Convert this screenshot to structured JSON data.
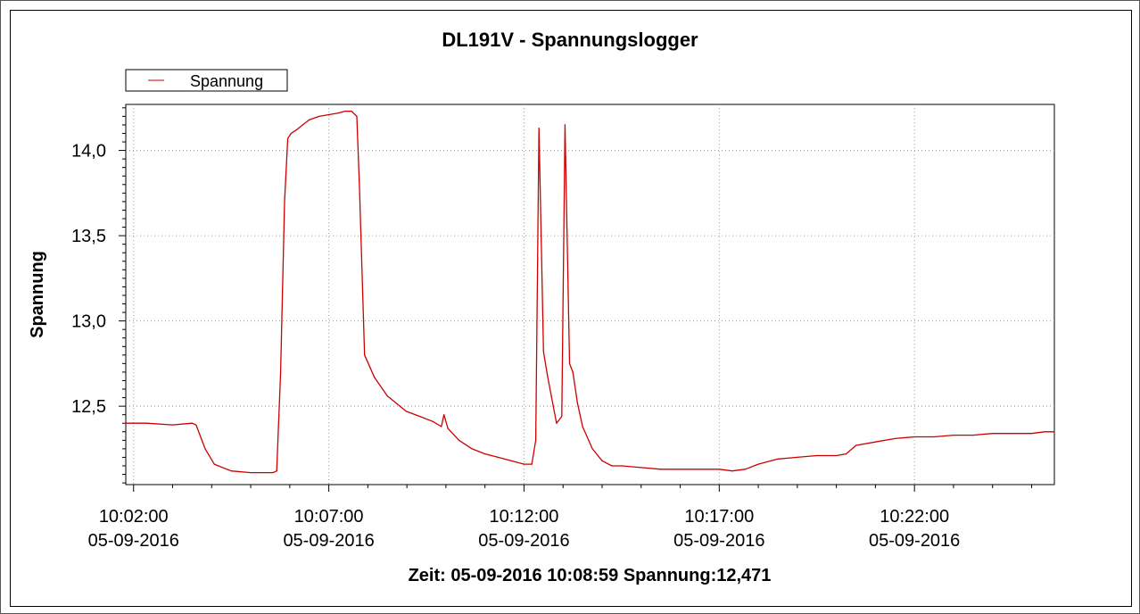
{
  "chart_data": {
    "type": "line",
    "title": "DL191V - Spannungslogger",
    "xlabel": "",
    "ylabel": "Spannung",
    "xlim": [
      "10:01:48",
      "10:25:35"
    ],
    "ylim": [
      12.04,
      14.27
    ],
    "grid": true,
    "legend_position": "top-left",
    "x_ticks": [
      {
        "time": "10:02:00",
        "date": "05-09-2016"
      },
      {
        "time": "10:07:00",
        "date": "05-09-2016"
      },
      {
        "time": "10:12:00",
        "date": "05-09-2016"
      },
      {
        "time": "10:17:00",
        "date": "05-09-2016"
      },
      {
        "time": "10:22:00",
        "date": "05-09-2016"
      }
    ],
    "y_ticks": [
      "12,5",
      "13,0",
      "13,5",
      "14,0"
    ],
    "y_tick_values": [
      12.5,
      13.0,
      13.5,
      14.0
    ],
    "series": [
      {
        "name": "Spannung",
        "color": "#cc0000",
        "x": [
          "10:01:48",
          "10:02:20",
          "10:03:00",
          "10:03:30",
          "10:03:36",
          "10:03:50",
          "10:04:04",
          "10:04:30",
          "10:05:00",
          "10:05:20",
          "10:05:34",
          "10:05:40",
          "10:05:46",
          "10:05:52",
          "10:05:57",
          "10:06:02",
          "10:06:10",
          "10:06:20",
          "10:06:30",
          "10:06:45",
          "10:07:00",
          "10:07:15",
          "10:07:25",
          "10:07:35",
          "10:07:43",
          "10:07:47",
          "10:07:55",
          "10:08:10",
          "10:08:30",
          "10:08:59",
          "10:09:20",
          "10:09:40",
          "10:09:53",
          "10:09:57",
          "10:10:03",
          "10:10:20",
          "10:10:40",
          "10:11:00",
          "10:11:20",
          "10:11:40",
          "10:12:00",
          "10:12:12",
          "10:12:18",
          "10:12:23",
          "10:12:30",
          "10:12:36",
          "10:12:50",
          "10:12:58",
          "10:13:03",
          "10:13:10",
          "10:13:15",
          "10:13:22",
          "10:13:30",
          "10:13:45",
          "10:14:00",
          "10:14:15",
          "10:14:30",
          "10:15:00",
          "10:15:30",
          "10:16:00",
          "10:16:30",
          "10:17:00",
          "10:17:20",
          "10:17:40",
          "10:18:00",
          "10:18:30",
          "10:19:00",
          "10:19:30",
          "10:20:00",
          "10:20:15",
          "10:20:30",
          "10:21:00",
          "10:21:30",
          "10:22:00",
          "10:22:30",
          "10:23:00",
          "10:23:30",
          "10:24:00",
          "10:24:30",
          "10:25:00",
          "10:25:20",
          "10:25:35"
        ],
        "y": [
          12.4,
          12.4,
          12.39,
          12.4,
          12.39,
          12.25,
          12.16,
          12.12,
          12.11,
          12.11,
          12.11,
          12.12,
          12.7,
          13.7,
          14.07,
          14.1,
          14.12,
          14.15,
          14.18,
          14.2,
          14.21,
          14.22,
          14.23,
          14.23,
          14.2,
          13.8,
          12.8,
          12.67,
          12.56,
          12.47,
          12.44,
          12.41,
          12.38,
          12.45,
          12.37,
          12.3,
          12.25,
          12.22,
          12.2,
          12.18,
          12.16,
          12.16,
          12.3,
          14.13,
          12.82,
          12.68,
          12.4,
          12.44,
          14.15,
          12.75,
          12.7,
          12.52,
          12.38,
          12.25,
          12.18,
          12.15,
          12.15,
          12.14,
          12.13,
          12.13,
          12.13,
          12.13,
          12.12,
          12.13,
          12.16,
          12.19,
          12.2,
          12.21,
          12.21,
          12.22,
          12.27,
          12.29,
          12.31,
          12.32,
          12.32,
          12.33,
          12.33,
          12.34,
          12.34,
          12.34,
          12.35,
          12.35
        ]
      }
    ],
    "status_text": "Zeit: 05-09-2016 10:08:59 Spannung:12,471"
  }
}
